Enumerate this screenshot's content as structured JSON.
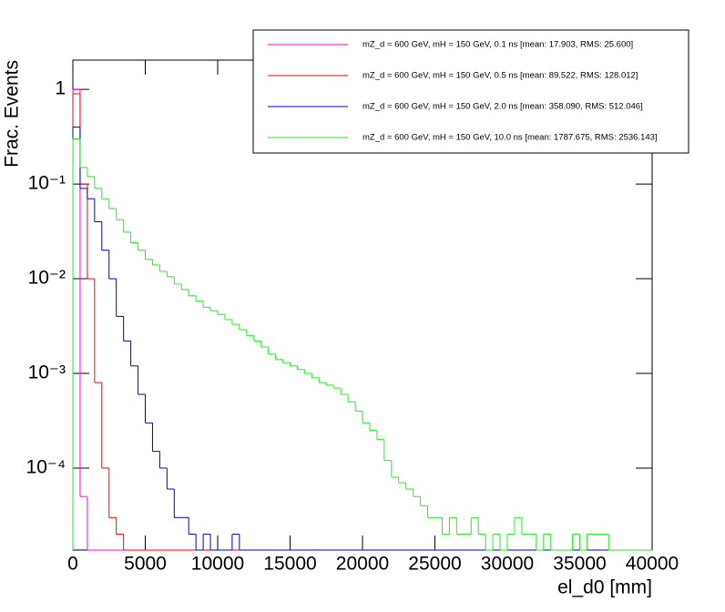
{
  "chart_data": {
    "type": "histogram",
    "xlabel": "el_d0 [mm]",
    "ylabel": "Frac. Events",
    "log_y": true,
    "grid": false,
    "legend": "upper right",
    "xlim": [
      0,
      40000
    ],
    "xticks": [
      0,
      5000,
      10000,
      15000,
      20000,
      25000,
      30000,
      35000,
      40000
    ],
    "ylim": [
      1.36e-05,
      2.04
    ],
    "yticks": [
      {
        "value": 0.0001,
        "label": "10⁻⁴"
      },
      {
        "value": 0.001,
        "label": "10⁻³"
      },
      {
        "value": 0.01,
        "label": "10⁻²"
      },
      {
        "value": 0.1,
        "label": "10⁻¹"
      },
      1
    ],
    "bins": [
      0,
      500,
      1000,
      1500,
      2000,
      2500,
      3000,
      3500,
      4000,
      4500,
      5000,
      5500,
      6000,
      6500,
      7000,
      7500,
      8000,
      8500,
      9000,
      9500,
      10000,
      10500,
      11000,
      11500,
      12000,
      12500,
      13000,
      13500,
      14000,
      14500,
      15000,
      15500,
      16000,
      16500,
      17000,
      17500,
      18000,
      18500,
      19000,
      19500,
      20000,
      20500,
      21000,
      21500,
      22000,
      22500,
      23000,
      23500,
      24000,
      24500,
      25000,
      25500,
      26000,
      26500,
      27000,
      27500,
      28000,
      28500,
      29000,
      29500,
      30000,
      30500,
      31000,
      31500,
      32000,
      32500,
      33000,
      33500,
      34000,
      34500,
      35000,
      35500,
      36000,
      36500,
      37000,
      37500,
      38000,
      38500,
      39000,
      39500,
      40000
    ],
    "series": [
      {
        "name": "mZ_d = 600 GeV, mH = 150 GeV, 0.1 ns [mean: 17.903, RMS: 25.600]",
        "color": "#ff00ff",
        "values": [
          1,
          5e-05,
          0,
          0,
          0,
          0,
          0,
          0,
          0,
          0,
          0,
          0,
          0,
          0,
          0,
          0,
          0,
          0,
          0,
          0,
          0,
          0,
          0,
          0,
          0,
          0,
          0,
          0,
          0,
          0,
          0,
          0,
          0,
          0,
          0,
          0,
          0,
          0,
          0,
          0,
          0,
          0,
          0,
          0,
          0,
          0,
          0,
          0,
          0,
          0,
          0,
          0,
          0,
          0,
          0,
          0,
          0,
          0,
          0,
          0,
          0,
          0,
          0,
          0,
          0,
          0,
          0,
          0,
          0,
          0,
          0,
          0,
          0,
          0,
          0,
          0,
          0,
          0,
          0,
          0
        ]
      },
      {
        "name": "mZ_d = 600 GeV, mH = 150 GeV, 0.5 ns [mean: 89.522, RMS: 128.012]",
        "color": "#ff0000",
        "values": [
          0.9,
          0.1,
          0.01,
          0.0008,
          0.0001,
          3e-05,
          2e-05,
          0,
          0,
          0,
          0,
          0,
          0,
          0,
          0,
          0,
          0,
          0,
          0,
          0,
          0,
          0,
          0,
          0,
          0,
          0,
          0,
          0,
          0,
          0,
          0,
          0,
          0,
          0,
          0,
          0,
          0,
          0,
          0,
          0,
          0,
          0,
          0,
          0,
          0,
          0,
          0,
          0,
          0,
          0,
          0,
          0,
          0,
          0,
          0,
          0,
          0,
          0,
          0,
          0,
          0,
          0,
          0,
          0,
          0,
          0,
          0,
          0,
          0,
          0,
          0,
          0,
          0,
          0,
          0,
          0,
          0,
          0,
          0,
          0
        ]
      },
      {
        "name": "mZ_d = 600 GeV, mH = 150 GeV, 2.0 ns [mean: 358.090, RMS: 512.046]",
        "color": "#0000cc",
        "values": [
          0.4,
          0.09,
          0.07,
          0.04,
          0.02,
          0.01,
          0.004,
          0.0022,
          0.0012,
          0.0006,
          0.0003,
          0.00015,
          0.0001,
          6e-05,
          3e-05,
          3e-05,
          2e-05,
          0,
          2e-05,
          0,
          0,
          0,
          2e-05,
          0,
          0,
          0,
          0,
          0,
          0,
          0,
          0,
          0,
          0,
          0,
          0,
          0,
          0,
          0,
          0,
          0,
          0,
          0,
          0,
          0,
          0,
          0,
          0,
          0,
          0,
          0,
          0,
          0,
          0,
          0,
          0,
          0,
          0,
          0,
          0,
          0,
          0,
          0,
          0,
          0,
          0,
          0,
          0,
          0,
          0,
          0,
          0,
          0,
          0,
          0,
          0,
          0,
          0,
          0,
          0,
          0
        ]
      },
      {
        "name": "mZ_d = 600 GeV, mH = 150 GeV, 10.0 ns [mean: 1787.675, RMS: 2536.143]",
        "color": "#22ee22",
        "values": [
          0.3,
          0.15,
          0.12,
          0.09,
          0.07,
          0.055,
          0.042,
          0.031,
          0.024,
          0.02,
          0.016,
          0.014,
          0.012,
          0.0105,
          0.0088,
          0.0077,
          0.0066,
          0.0058,
          0.005,
          0.0046,
          0.0042,
          0.0037,
          0.0033,
          0.0029,
          0.0025,
          0.0022,
          0.0019,
          0.0016,
          0.0014,
          0.0013,
          0.0012,
          0.0011,
          0.001,
          0.0009,
          0.0008,
          0.00075,
          0.0007,
          0.0006,
          0.0005,
          0.0004,
          0.0003,
          0.00025,
          0.0002,
          0.00012,
          8e-05,
          7e-05,
          6e-05,
          5e-05,
          4e-05,
          3e-05,
          3e-05,
          2e-05,
          3e-05,
          2e-05,
          2e-05,
          3e-05,
          2e-05,
          0,
          2e-05,
          0,
          2e-05,
          3e-05,
          2e-05,
          2e-05,
          0,
          2e-05,
          0,
          0,
          0,
          2e-05,
          0,
          2e-05,
          2e-05,
          2e-05,
          0,
          0,
          0,
          0,
          0,
          0
        ]
      }
    ]
  }
}
